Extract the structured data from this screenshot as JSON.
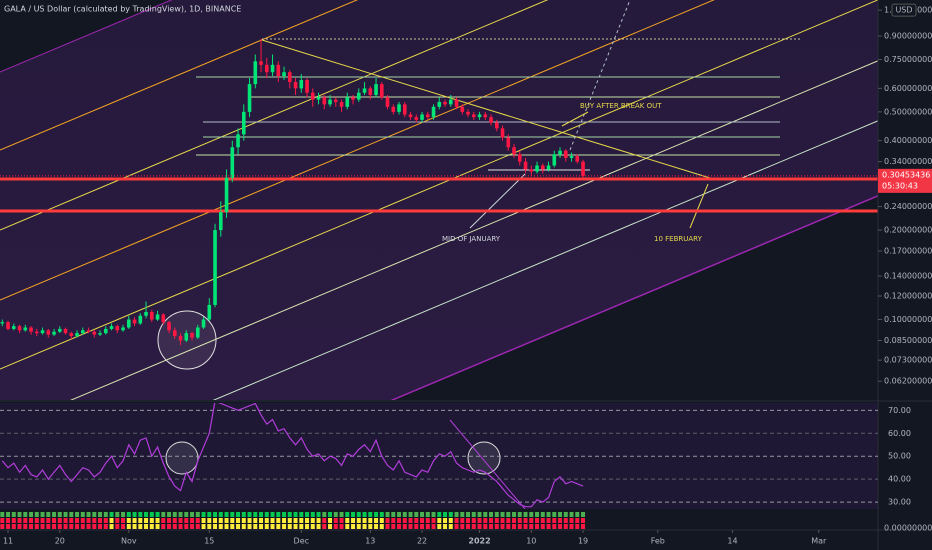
{
  "chart_data": {
    "type": "candlestick",
    "title": "GALA / US Dollar (calculated by TradingView), 1D, BINANCE",
    "currency": "USD",
    "log_scale": true,
    "up_color": "#00e676",
    "down_color": "#ff1744",
    "x": [
      -1,
      0,
      1,
      2,
      3,
      4,
      5,
      6,
      7,
      8,
      9,
      10,
      11,
      12,
      13,
      14,
      15,
      16,
      17,
      18,
      19,
      20,
      21,
      22,
      23,
      24,
      25,
      26,
      27,
      28,
      29,
      30,
      31,
      32,
      33,
      34,
      35,
      36,
      37,
      38,
      39,
      40,
      41,
      42,
      43,
      44,
      45,
      46,
      47,
      48,
      49,
      50,
      51,
      52,
      53,
      54,
      55,
      56,
      57,
      58,
      59,
      60,
      61,
      62,
      63,
      64,
      65,
      66,
      67,
      68,
      69,
      70,
      71,
      72,
      73,
      74,
      75,
      76,
      77,
      78,
      79,
      80,
      81,
      82,
      83,
      84,
      85,
      86,
      87,
      88,
      89,
      90,
      91,
      92,
      93,
      94,
      95,
      96,
      97,
      98,
      99,
      100
    ],
    "candles": [
      [
        0.097,
        0.1,
        0.095,
        0.098
      ],
      [
        0.098,
        0.099,
        0.092,
        0.093
      ],
      [
        0.093,
        0.097,
        0.092,
        0.095
      ],
      [
        0.095,
        0.096,
        0.09,
        0.092
      ],
      [
        0.092,
        0.096,
        0.091,
        0.094
      ],
      [
        0.094,
        0.095,
        0.089,
        0.091
      ],
      [
        0.091,
        0.093,
        0.088,
        0.09
      ],
      [
        0.09,
        0.094,
        0.089,
        0.092
      ],
      [
        0.092,
        0.093,
        0.087,
        0.089
      ],
      [
        0.089,
        0.093,
        0.088,
        0.091
      ],
      [
        0.091,
        0.095,
        0.09,
        0.093
      ],
      [
        0.093,
        0.094,
        0.089,
        0.09
      ],
      [
        0.09,
        0.091,
        0.086,
        0.088
      ],
      [
        0.088,
        0.092,
        0.087,
        0.09
      ],
      [
        0.09,
        0.094,
        0.089,
        0.092
      ],
      [
        0.092,
        0.094,
        0.09,
        0.091
      ],
      [
        0.091,
        0.092,
        0.087,
        0.089
      ],
      [
        0.089,
        0.092,
        0.088,
        0.09
      ],
      [
        0.09,
        0.095,
        0.089,
        0.093
      ],
      [
        0.093,
        0.097,
        0.092,
        0.095
      ],
      [
        0.095,
        0.096,
        0.09,
        0.092
      ],
      [
        0.092,
        0.096,
        0.091,
        0.094
      ],
      [
        0.094,
        0.103,
        0.093,
        0.1
      ],
      [
        0.1,
        0.102,
        0.095,
        0.097
      ],
      [
        0.097,
        0.105,
        0.096,
        0.103
      ],
      [
        0.103,
        0.115,
        0.101,
        0.106
      ],
      [
        0.106,
        0.108,
        0.098,
        0.1
      ],
      [
        0.1,
        0.107,
        0.099,
        0.104
      ],
      [
        0.104,
        0.105,
        0.096,
        0.098
      ],
      [
        0.098,
        0.099,
        0.09,
        0.092
      ],
      [
        0.092,
        0.094,
        0.086,
        0.088
      ],
      [
        0.088,
        0.09,
        0.082,
        0.085
      ],
      [
        0.085,
        0.092,
        0.084,
        0.09
      ],
      [
        0.09,
        0.091,
        0.085,
        0.087
      ],
      [
        0.087,
        0.096,
        0.086,
        0.094
      ],
      [
        0.094,
        0.102,
        0.093,
        0.1
      ],
      [
        0.1,
        0.118,
        0.099,
        0.112
      ],
      [
        0.112,
        0.21,
        0.11,
        0.2
      ],
      [
        0.2,
        0.25,
        0.19,
        0.23
      ],
      [
        0.23,
        0.32,
        0.22,
        0.3
      ],
      [
        0.3,
        0.4,
        0.29,
        0.38
      ],
      [
        0.38,
        0.44,
        0.36,
        0.42
      ],
      [
        0.42,
        0.53,
        0.4,
        0.5
      ],
      [
        0.5,
        0.65,
        0.48,
        0.62
      ],
      [
        0.62,
        0.78,
        0.6,
        0.74
      ],
      [
        0.74,
        0.88,
        0.68,
        0.72
      ],
      [
        0.72,
        0.76,
        0.65,
        0.68
      ],
      [
        0.68,
        0.78,
        0.66,
        0.72
      ],
      [
        0.72,
        0.74,
        0.63,
        0.66
      ],
      [
        0.66,
        0.71,
        0.64,
        0.68
      ],
      [
        0.68,
        0.69,
        0.6,
        0.63
      ],
      [
        0.63,
        0.65,
        0.57,
        0.6
      ],
      [
        0.6,
        0.67,
        0.58,
        0.64
      ],
      [
        0.64,
        0.65,
        0.56,
        0.58
      ],
      [
        0.58,
        0.6,
        0.52,
        0.55
      ],
      [
        0.55,
        0.58,
        0.53,
        0.56
      ],
      [
        0.56,
        0.57,
        0.51,
        0.53
      ],
      [
        0.53,
        0.57,
        0.52,
        0.55
      ],
      [
        0.55,
        0.56,
        0.52,
        0.54
      ],
      [
        0.54,
        0.55,
        0.5,
        0.52
      ],
      [
        0.52,
        0.58,
        0.51,
        0.56
      ],
      [
        0.56,
        0.57,
        0.53,
        0.55
      ],
      [
        0.55,
        0.6,
        0.54,
        0.58
      ],
      [
        0.58,
        0.63,
        0.57,
        0.6
      ],
      [
        0.6,
        0.61,
        0.55,
        0.57
      ],
      [
        0.57,
        0.65,
        0.56,
        0.62
      ],
      [
        0.62,
        0.63,
        0.55,
        0.56
      ],
      [
        0.56,
        0.57,
        0.51,
        0.52
      ],
      [
        0.52,
        0.53,
        0.49,
        0.5
      ],
      [
        0.5,
        0.54,
        0.49,
        0.53
      ],
      [
        0.53,
        0.54,
        0.48,
        0.49
      ],
      [
        0.49,
        0.5,
        0.47,
        0.48
      ],
      [
        0.48,
        0.49,
        0.46,
        0.47
      ],
      [
        0.47,
        0.5,
        0.46,
        0.49
      ],
      [
        0.49,
        0.5,
        0.47,
        0.48
      ],
      [
        0.48,
        0.53,
        0.47,
        0.52
      ],
      [
        0.52,
        0.56,
        0.51,
        0.54
      ],
      [
        0.54,
        0.55,
        0.52,
        0.53
      ],
      [
        0.53,
        0.57,
        0.52,
        0.55
      ],
      [
        0.55,
        0.56,
        0.51,
        0.52
      ],
      [
        0.52,
        0.53,
        0.49,
        0.5
      ],
      [
        0.5,
        0.51,
        0.48,
        0.49
      ],
      [
        0.49,
        0.5,
        0.47,
        0.48
      ],
      [
        0.48,
        0.5,
        0.47,
        0.49
      ],
      [
        0.49,
        0.5,
        0.47,
        0.48
      ],
      [
        0.48,
        0.49,
        0.45,
        0.46
      ],
      [
        0.46,
        0.47,
        0.43,
        0.44
      ],
      [
        0.44,
        0.45,
        0.4,
        0.41
      ],
      [
        0.41,
        0.42,
        0.37,
        0.38
      ],
      [
        0.38,
        0.39,
        0.35,
        0.36
      ],
      [
        0.36,
        0.37,
        0.33,
        0.34
      ],
      [
        0.34,
        0.35,
        0.31,
        0.32
      ],
      [
        0.32,
        0.33,
        0.305,
        0.315
      ],
      [
        0.315,
        0.34,
        0.31,
        0.33
      ],
      [
        0.33,
        0.335,
        0.31,
        0.32
      ],
      [
        0.32,
        0.34,
        0.315,
        0.33
      ],
      [
        0.33,
        0.37,
        0.325,
        0.36
      ],
      [
        0.36,
        0.38,
        0.35,
        0.37
      ],
      [
        0.37,
        0.375,
        0.34,
        0.35
      ],
      [
        0.35,
        0.365,
        0.34,
        0.355
      ],
      [
        0.355,
        0.36,
        0.335,
        0.34
      ],
      [
        0.34,
        0.345,
        0.3,
        0.30453436
      ]
    ],
    "last_price": 0.30453436,
    "countdown": "05:30:43",
    "xlim": [
      -1.4,
      151.3
    ],
    "xticks": [
      {
        "value": 0,
        "label": "11"
      },
      {
        "value": 9,
        "label": "20"
      },
      {
        "value": 21,
        "label": "Nov"
      },
      {
        "value": 35,
        "label": "15"
      },
      {
        "value": 51,
        "label": "Dec"
      },
      {
        "value": 63,
        "label": "13"
      },
      {
        "value": 72,
        "label": "22"
      },
      {
        "value": 82,
        "label": "2022"
      },
      {
        "value": 91,
        "label": "10"
      },
      {
        "value": 100,
        "label": "19"
      },
      {
        "value": 113,
        "label": "Feb"
      },
      {
        "value": 126,
        "label": "14"
      },
      {
        "value": 141,
        "label": "Mar"
      }
    ],
    "ylim": [
      0.0536,
      1.19
    ],
    "yticks": [
      {
        "value": 1.1,
        "label": "1.10000000"
      },
      {
        "value": 0.9,
        "label": "0.90000000"
      },
      {
        "value": 0.75,
        "label": "0.75000000"
      },
      {
        "value": 0.6,
        "label": "0.60000000"
      },
      {
        "value": 0.5,
        "label": "0.50000000"
      },
      {
        "value": 0.4,
        "label": "0.40000000"
      },
      {
        "value": 0.34,
        "label": "0.34000000"
      },
      {
        "value": 0.24,
        "label": "0.24000000"
      },
      {
        "value": 0.2,
        "label": "0.20000000"
      },
      {
        "value": 0.17,
        "label": "0.17000000"
      },
      {
        "value": 0.14,
        "label": "0.14000000"
      },
      {
        "value": 0.12,
        "label": "0.12000000"
      },
      {
        "value": 0.1,
        "label": "0.10000000"
      },
      {
        "value": 0.085,
        "label": "0.08500000"
      },
      {
        "value": 0.073,
        "label": "0.07300000"
      },
      {
        "value": 0.062,
        "label": "0.06200000"
      }
    ],
    "annotations": [
      "BUY AFTER BREAK OUT",
      "MID OF JANUARY",
      "10 FEBRUARY"
    ],
    "rsi": {
      "color": "#b23ddb",
      "values": [
        48,
        45,
        47,
        43,
        46,
        42,
        41,
        44,
        40,
        43,
        46,
        42,
        39,
        42,
        45,
        44,
        41,
        43,
        47,
        50,
        45,
        48,
        55,
        51,
        57,
        58,
        50,
        54,
        47,
        41,
        37,
        35,
        43,
        39,
        48,
        54,
        60,
        74,
        73,
        72,
        71,
        70,
        71,
        72,
        73,
        68,
        64,
        66,
        61,
        62,
        58,
        55,
        58,
        53,
        50,
        51,
        48,
        50,
        49,
        46,
        51,
        50,
        53,
        55,
        52,
        57,
        50,
        46,
        44,
        48,
        43,
        42,
        41,
        44,
        43,
        48,
        51,
        50,
        52,
        47,
        45,
        44,
        43,
        44,
        43,
        41,
        39,
        36,
        33,
        31,
        29,
        28,
        28,
        31,
        30,
        32,
        39,
        41,
        38,
        39,
        38,
        37
      ],
      "ylim": [
        27,
        73.2
      ],
      "yticks": [
        {
          "value": 70,
          "label": "70.00"
        },
        {
          "value": 60,
          "label": "60.00"
        },
        {
          "value": 50,
          "label": "50.00"
        },
        {
          "value": 40,
          "label": "40.00"
        },
        {
          "value": 30,
          "label": "30.00"
        }
      ]
    },
    "strip_ticks": [
      {
        "value": 0,
        "label": "0.00000000"
      }
    ]
  }
}
